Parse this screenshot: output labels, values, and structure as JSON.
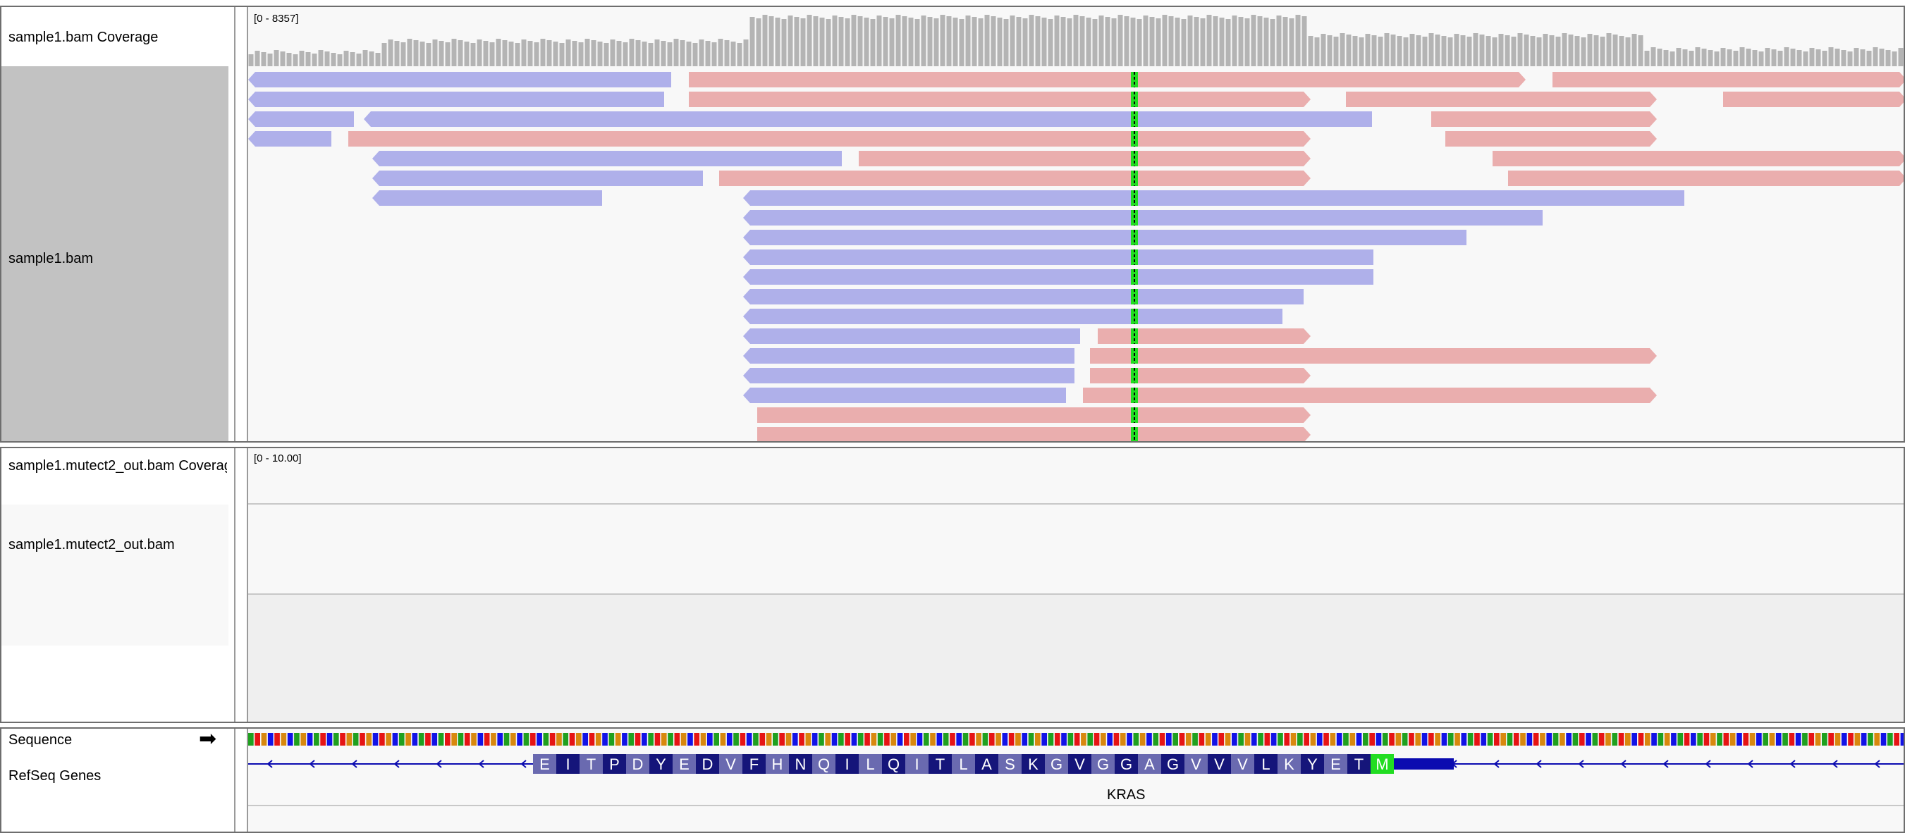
{
  "panel1": {
    "coverage_track": {
      "name": "sample1.bam Coverage",
      "range": "[0 - 8357]"
    },
    "reads_track": {
      "name": "sample1.bam"
    }
  },
  "panel2": {
    "coverage_track": {
      "name": "sample1.mutect2_out.bam Coverage",
      "range": "[0 - 10.00]"
    },
    "reads_track": {
      "name": "sample1.mutect2_out.bam"
    }
  },
  "panel3": {
    "sequence_track": {
      "name": "Sequence",
      "strand_icon": "right-arrow-icon"
    },
    "genes_track": {
      "name": "RefSeq Genes",
      "gene": "KRAS",
      "amino_acids": [
        "E",
        "I",
        "T",
        "P",
        "D",
        "Y",
        "E",
        "D",
        "V",
        "F",
        "H",
        "N",
        "Q",
        "I",
        "L",
        "Q",
        "I",
        "T",
        "L",
        "A",
        "S",
        "K",
        "G",
        "V",
        "G",
        "G",
        "A",
        "G",
        "V",
        "V",
        "V",
        "L",
        "K",
        "Y",
        "E",
        "T",
        "M"
      ]
    }
  },
  "colors": {
    "forward_read": "#eaaeae",
    "reverse_read": "#afb0ea",
    "coverage": "#b4b4b4",
    "mismatch_highlight": "#22dd22",
    "base_A": "#1fa01f",
    "base_C": "#1212e6",
    "base_G": "#d8880e",
    "base_T": "#e61414",
    "gene": "#0b0bb0",
    "aa_dark": "#15157a",
    "aa_light": "#6a6ab0",
    "start_codon": "#22dd22"
  }
}
